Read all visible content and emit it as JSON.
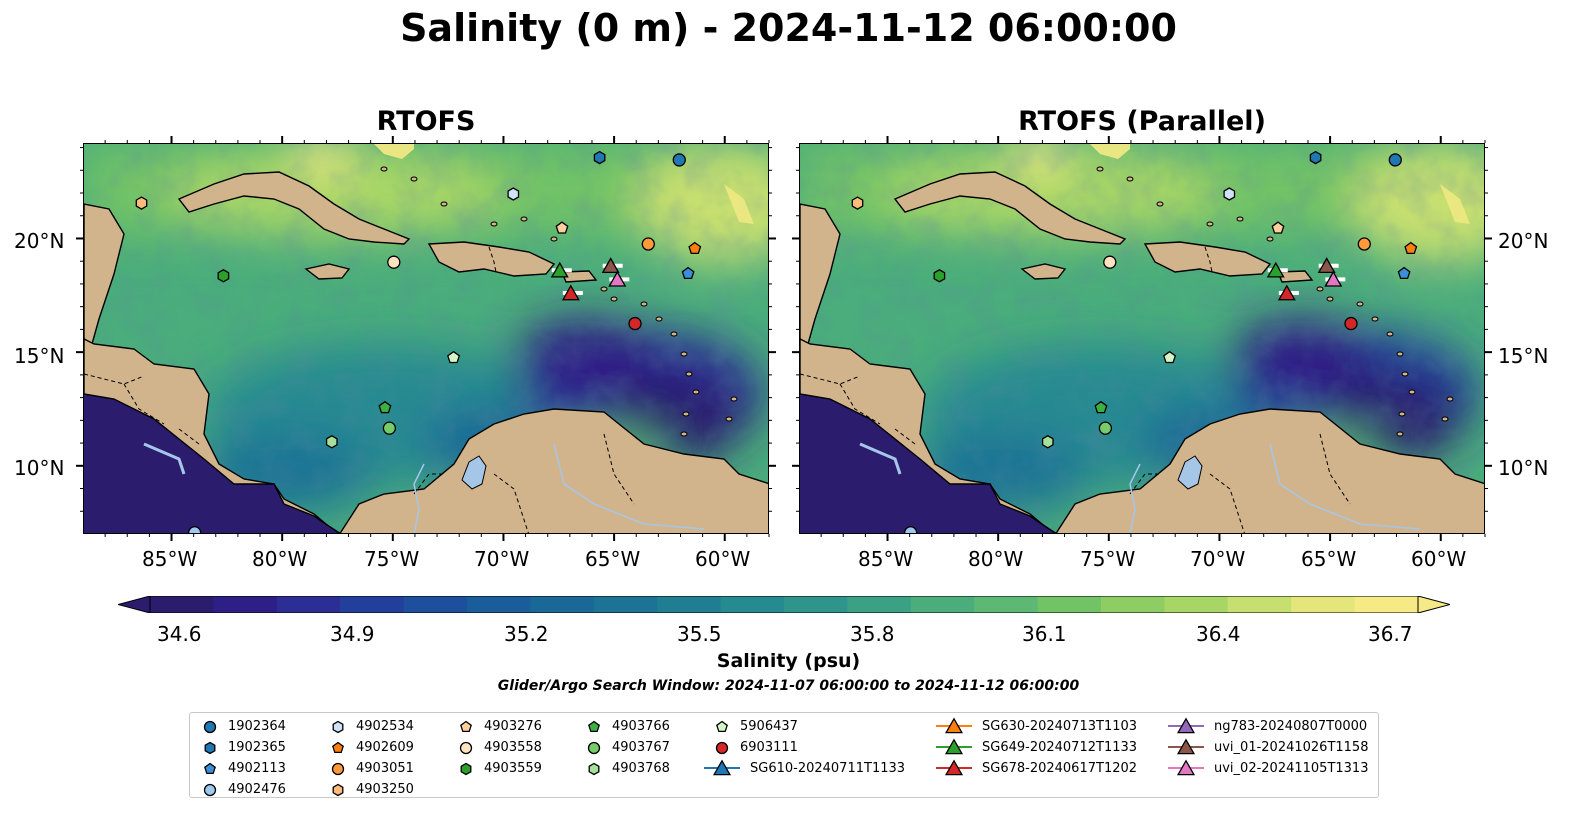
{
  "title": "Salinity (0 m) - 2024-11-12 06:00:00",
  "panels": [
    {
      "title": "RTOFS"
    },
    {
      "title": "RTOFS (Parallel)"
    }
  ],
  "lon_ticks": [
    "85°W",
    "80°W",
    "75°W",
    "70°W",
    "65°W",
    "60°W"
  ],
  "lat_ticks": [
    "20°N",
    "15°N",
    "10°N"
  ],
  "map_extent": {
    "lon": [
      -89,
      -58
    ],
    "lat": [
      7,
      24.2
    ]
  },
  "colorbar": {
    "label": "Salinity (psu)",
    "ticks": [
      "34.6",
      "34.9",
      "35.2",
      "35.5",
      "35.8",
      "36.1",
      "36.4",
      "36.7"
    ],
    "colors": [
      "#2b1c6e",
      "#2e1f86",
      "#2c2e96",
      "#233f9c",
      "#1e4f9d",
      "#1b5c9b",
      "#1a6898",
      "#1c7395",
      "#207e93",
      "#268a91",
      "#2f958c",
      "#3aa185",
      "#4aad7b",
      "#5cb872",
      "#72c366",
      "#8ecd64",
      "#a8d666",
      "#c7df70",
      "#e4e57a",
      "#f5ea85"
    ]
  },
  "search_window": "Glider/Argo Search Window: 2024-11-07 06:00:00 to 2024-11-12 06:00:00",
  "legend": [
    {
      "label": "1902364",
      "marker": "circle",
      "color": "#1f77b4"
    },
    {
      "label": "1902365",
      "marker": "hexagon",
      "color": "#1f77b4"
    },
    {
      "label": "4902113",
      "marker": "pentagon",
      "color": "#3a8fd8"
    },
    {
      "label": "4902476",
      "marker": "circle",
      "color": "#9ec8ec"
    },
    {
      "label": "4902534",
      "marker": "hexagon",
      "color": "#cfe2f6"
    },
    {
      "label": "4902609",
      "marker": "pentagon",
      "color": "#ff7f0e"
    },
    {
      "label": "4903051",
      "marker": "circle",
      "color": "#ff9a3c"
    },
    {
      "label": "4903250",
      "marker": "hexagon",
      "color": "#ffbb78"
    },
    {
      "label": "4903276",
      "marker": "pentagon",
      "color": "#ffcf9e"
    },
    {
      "label": "4903558",
      "marker": "circle",
      "color": "#ffe2c0"
    },
    {
      "label": "4903559",
      "marker": "hexagon",
      "color": "#2ca02c"
    },
    {
      "label": "4903766",
      "marker": "pentagon",
      "color": "#3cb043"
    },
    {
      "label": "4903767",
      "marker": "circle",
      "color": "#76cc6a"
    },
    {
      "label": "4903768",
      "marker": "hexagon",
      "color": "#a6e09a"
    },
    {
      "label": "5906437",
      "marker": "pentagon",
      "color": "#d4f5c8"
    },
    {
      "label": "6903111",
      "marker": "circle",
      "color": "#d62728"
    },
    {
      "label": "SG610-20240711T1133",
      "marker": "triangle",
      "color": "#1f77b4"
    },
    {
      "label": "SG630-20240713T1103",
      "marker": "triangle",
      "color": "#ff7f0e"
    },
    {
      "label": "SG649-20240712T1133",
      "marker": "triangle",
      "color": "#2ca02c"
    },
    {
      "label": "SG678-20240617T1202",
      "marker": "triangle",
      "color": "#d62728"
    },
    {
      "label": "ng783-20240807T0000",
      "marker": "triangle",
      "color": "#9467bd"
    },
    {
      "label": "uvi_01-20241026T1158",
      "marker": "triangle",
      "color": "#8c564b"
    },
    {
      "label": "uvi_02-20241105T1313",
      "marker": "triangle",
      "color": "#e377c2"
    }
  ],
  "observations": [
    {
      "id": "1902364",
      "lon": -62.1,
      "lat": 23.5
    },
    {
      "id": "1902365",
      "lon": -65.7,
      "lat": 23.6
    },
    {
      "id": "4902113",
      "lon": -61.7,
      "lat": 18.5
    },
    {
      "id": "4902476",
      "lon": -84.0,
      "lat": 7.1
    },
    {
      "id": "4902534",
      "lon": -69.6,
      "lat": 22.0
    },
    {
      "id": "4902609",
      "lon": -61.4,
      "lat": 19.6
    },
    {
      "id": "4903051",
      "lon": -63.5,
      "lat": 19.8
    },
    {
      "id": "4903250",
      "lon": -86.4,
      "lat": 21.6
    },
    {
      "id": "4903276",
      "lon": -67.4,
      "lat": 20.5
    },
    {
      "id": "4903558",
      "lon": -75.0,
      "lat": 19.0
    },
    {
      "id": "4903559",
      "lon": -82.7,
      "lat": 18.4
    },
    {
      "id": "4903766",
      "lon": -75.4,
      "lat": 12.6
    },
    {
      "id": "4903767",
      "lon": -75.2,
      "lat": 11.7
    },
    {
      "id": "4903768",
      "lon": -77.8,
      "lat": 11.1
    },
    {
      "id": "5906437",
      "lon": -72.3,
      "lat": 14.8
    },
    {
      "id": "6903111",
      "lon": -64.1,
      "lat": 16.3
    },
    {
      "id": "SG649-20240712T1133",
      "lon": -67.5,
      "lat": 18.6
    },
    {
      "id": "SG678-20240617T1202",
      "lon": -67.0,
      "lat": 17.6
    },
    {
      "id": "uvi_01-20241026T1158",
      "lon": -65.2,
      "lat": 18.8
    },
    {
      "id": "uvi_02-20241105T1313",
      "lon": -64.9,
      "lat": 18.2
    }
  ],
  "land_color": "#d2b48c",
  "lake_color": "#a6c6e8"
}
